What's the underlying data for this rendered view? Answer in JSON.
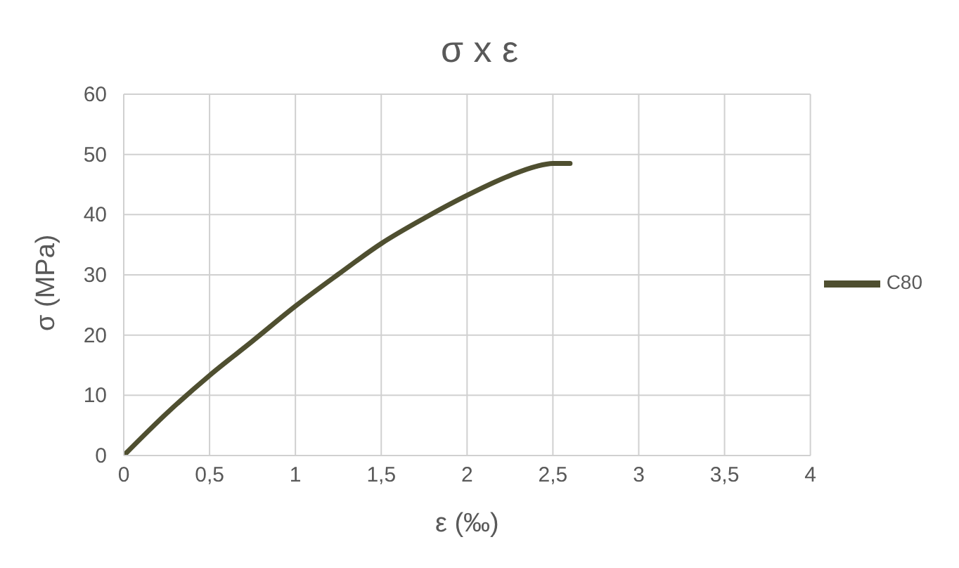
{
  "chart_data": {
    "type": "line",
    "title": "σ x ε",
    "xlabel": "ε (‰)",
    "ylabel": "σ (MPa)",
    "x": [
      0,
      0.25,
      0.5,
      0.75,
      1,
      1.25,
      1.5,
      1.75,
      2,
      2.25,
      2.4,
      2.5,
      2.6
    ],
    "series": [
      {
        "name": "C80",
        "color": "#4f4f30",
        "values": [
          0,
          7,
          13.3,
          19,
          24.8,
          30.1,
          35.2,
          39.4,
          43.2,
          46.5,
          48,
          48.5,
          48.5
        ]
      }
    ],
    "xlim": [
      0,
      4
    ],
    "xticks": [
      {
        "value": 0,
        "label": "0"
      },
      {
        "value": 0.5,
        "label": "0,5"
      },
      {
        "value": 1,
        "label": "1"
      },
      {
        "value": 1.5,
        "label": "1,5"
      },
      {
        "value": 2,
        "label": "2"
      },
      {
        "value": 2.5,
        "label": "2,5"
      },
      {
        "value": 3,
        "label": "3"
      },
      {
        "value": 3.5,
        "label": "3,5"
      },
      {
        "value": 4,
        "label": "4"
      }
    ],
    "ylim": [
      0,
      60
    ],
    "yticks": [
      0,
      10,
      20,
      30,
      40,
      50,
      60
    ],
    "grid": true,
    "legend": "right",
    "marker": "none",
    "line_style": "solid"
  }
}
